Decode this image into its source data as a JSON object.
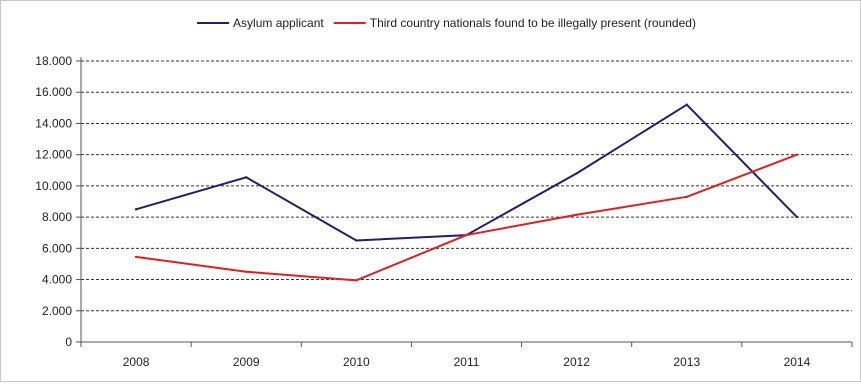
{
  "chart_data": {
    "type": "line",
    "categories": [
      "2008",
      "2009",
      "2010",
      "2011",
      "2012",
      "2013",
      "2014"
    ],
    "series": [
      {
        "name": "Asylum applicant",
        "color": "#1f1f6e",
        "values": [
          8500,
          10550,
          6500,
          6850,
          10800,
          15200,
          8000
        ]
      },
      {
        "name": "Third country nationals found to be illegally present (rounded)",
        "color": "#e02020",
        "values": [
          5450,
          4500,
          3950,
          6850,
          8150,
          9300,
          12000
        ]
      }
    ],
    "y_ticks": [
      "0",
      "2.000",
      "4.000",
      "6.000",
      "8.000",
      "10.000",
      "12.000",
      "14.000",
      "16.000",
      "18.000"
    ],
    "ylim": [
      0,
      18000
    ],
    "grid": "horizontal dashed",
    "legend_position": "top"
  }
}
